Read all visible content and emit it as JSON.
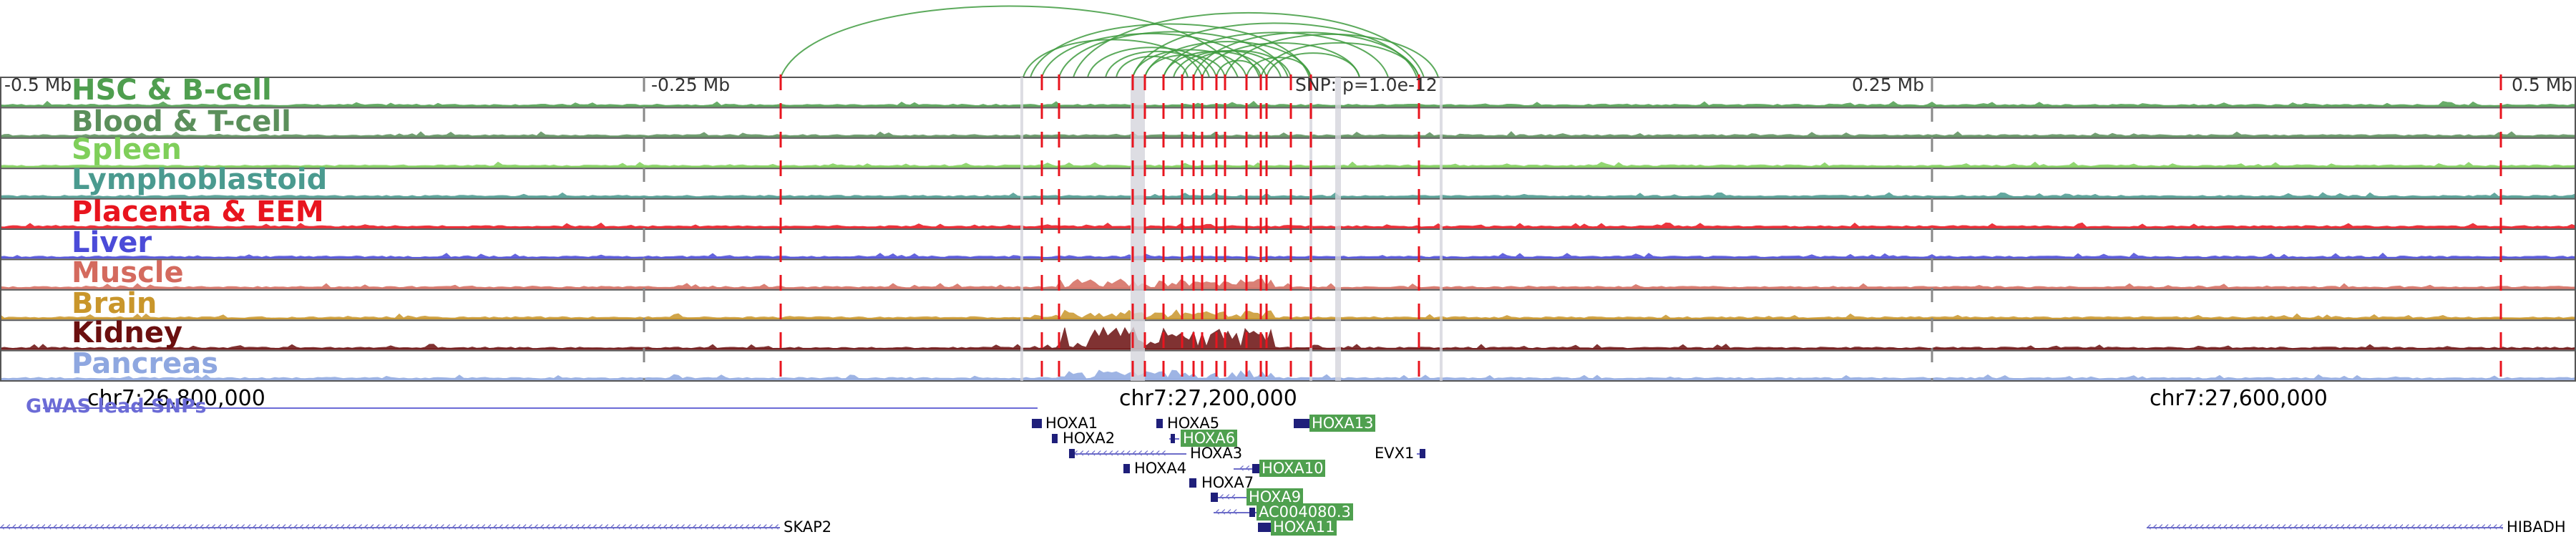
{
  "genome_browser": {
    "ruler": {
      "left_offset": "-0.5 Mb",
      "mid_left_offset": "-0.25 Mb",
      "snp_label": "SNP: p=1.0e-12",
      "mid_right_offset": "0.25 Mb",
      "right_offset": "0.5 Mb"
    },
    "tracks": [
      {
        "label": "HSC & B-cell",
        "color": "#4f9e4f"
      },
      {
        "label": "Blood & T-cell",
        "color": "#5b8f5b"
      },
      {
        "label": "Spleen",
        "color": "#7fcf5a"
      },
      {
        "label": "Lymphoblastoid",
        "color": "#4a9a8f"
      },
      {
        "label": "Placenta & EEM",
        "color": "#e8141e"
      },
      {
        "label": "Liver",
        "color": "#4b4bd8"
      },
      {
        "label": "Muscle",
        "color": "#d46a5e"
      },
      {
        "label": "Brain",
        "color": "#c9962b"
      },
      {
        "label": "Kidney",
        "color": "#6b0f0f"
      },
      {
        "label": "Pancreas",
        "color": "#8ea7e0"
      }
    ],
    "positions": {
      "left": "chr7:26,800,000",
      "center": "chr7:27,200,000",
      "right": "chr7:27,600,000"
    },
    "gwas_label": "GWAS lead SNPs",
    "genes": [
      {
        "name": "HOXA1",
        "highlight": false
      },
      {
        "name": "HOXA2",
        "highlight": false
      },
      {
        "name": "HOXA3",
        "highlight": false
      },
      {
        "name": "HOXA4",
        "highlight": false
      },
      {
        "name": "HOXA5",
        "highlight": false
      },
      {
        "name": "HOXA6",
        "highlight": true
      },
      {
        "name": "HOXA7",
        "highlight": false
      },
      {
        "name": "HOXA9",
        "highlight": true
      },
      {
        "name": "HOXA10",
        "highlight": true
      },
      {
        "name": "AC004080.3",
        "highlight": true
      },
      {
        "name": "HOXA11",
        "highlight": true
      },
      {
        "name": "HOXA13",
        "highlight": true
      },
      {
        "name": "EVX1",
        "highlight": false
      },
      {
        "name": "SKAP2",
        "highlight": false
      },
      {
        "name": "HIBADH",
        "highlight": false
      }
    ],
    "colors": {
      "link_arc": "#3f9b3f",
      "snp_line": "#e8141e",
      "gene_body": "#1f1f7a",
      "gene_strand": "#6d6dc9",
      "gene_highlight": "#4fa04f"
    }
  }
}
